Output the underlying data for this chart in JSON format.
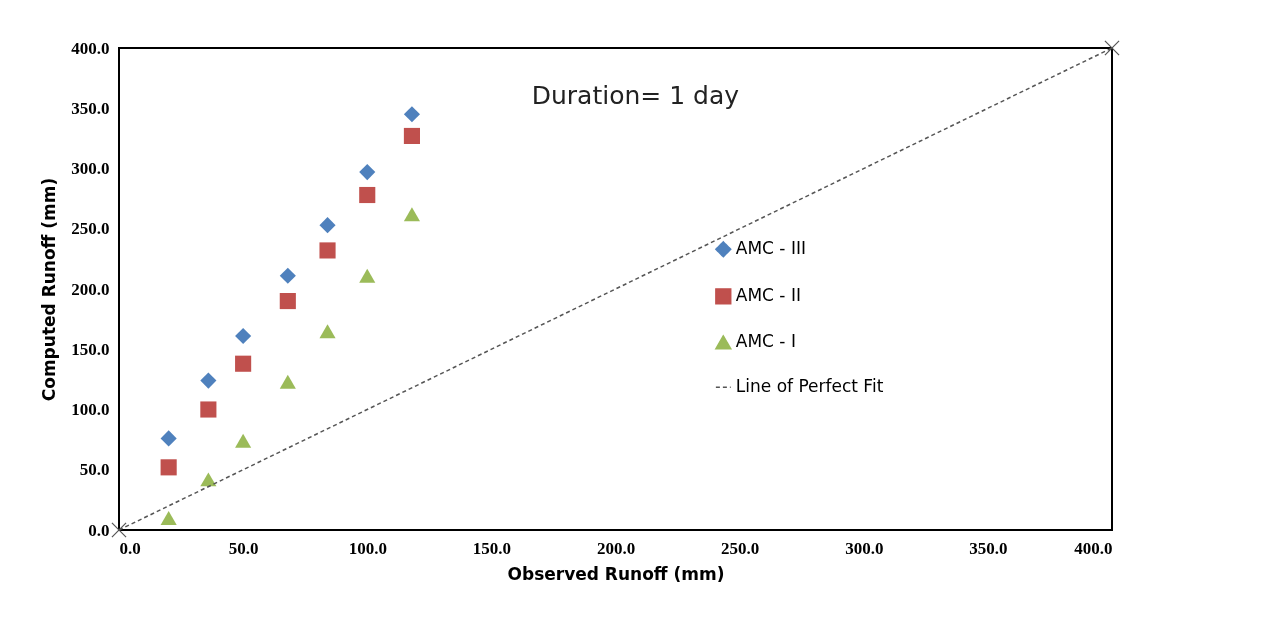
{
  "chart_data": {
    "type": "scatter",
    "xlabel": "Observed Runoff (mm)",
    "ylabel": "Computed Runoff (mm)",
    "annotations": [
      "Duration= 1 day"
    ],
    "xlim": [
      0,
      400
    ],
    "ylim": [
      0,
      400
    ],
    "xticks": [
      {
        "value": 0,
        "label": "0.0"
      },
      {
        "value": 50,
        "label": "50.0"
      },
      {
        "value": 100,
        "label": "100.0"
      },
      {
        "value": 150,
        "label": "150.0"
      },
      {
        "value": 200,
        "label": "200.0"
      },
      {
        "value": 250,
        "label": "250.0"
      },
      {
        "value": 300,
        "label": "300.0"
      },
      {
        "value": 350,
        "label": "350.0"
      },
      {
        "value": 400,
        "label": "400.0"
      }
    ],
    "yticks": [
      {
        "value": 0,
        "label": "0.0"
      },
      {
        "value": 50,
        "label": "50.0"
      },
      {
        "value": 100,
        "label": "100.0"
      },
      {
        "value": 150,
        "label": "150.0"
      },
      {
        "value": 200,
        "label": "200.0"
      },
      {
        "value": 250,
        "label": "250.0"
      },
      {
        "value": 300,
        "label": "300.0"
      },
      {
        "value": 350,
        "label": "350.0"
      },
      {
        "value": 400,
        "label": "400.0"
      }
    ],
    "grid": false,
    "legend": "right",
    "x": [
      20,
      36,
      50,
      68,
      84,
      100,
      118
    ],
    "series": [
      {
        "name": "AMC - III",
        "color": "#4f81bd",
        "marker": "diamond",
        "values": [
          76,
          124,
          161,
          211,
          253,
          297,
          345
        ]
      },
      {
        "name": "AMC - II",
        "color": "#c0504d",
        "marker": "square",
        "values": [
          52,
          100,
          138,
          190,
          232,
          278,
          327
        ]
      },
      {
        "name": "AMC - I",
        "color": "#9bbb59",
        "marker": "triangle",
        "values": [
          10,
          42,
          74,
          123,
          165,
          211,
          262
        ]
      },
      {
        "name": "Line of Perfect Fit",
        "type": "line",
        "color": "#555555",
        "marker": "cross",
        "line_style": "dashed",
        "x": [
          0,
          400
        ],
        "values": [
          0,
          400
        ]
      }
    ]
  }
}
